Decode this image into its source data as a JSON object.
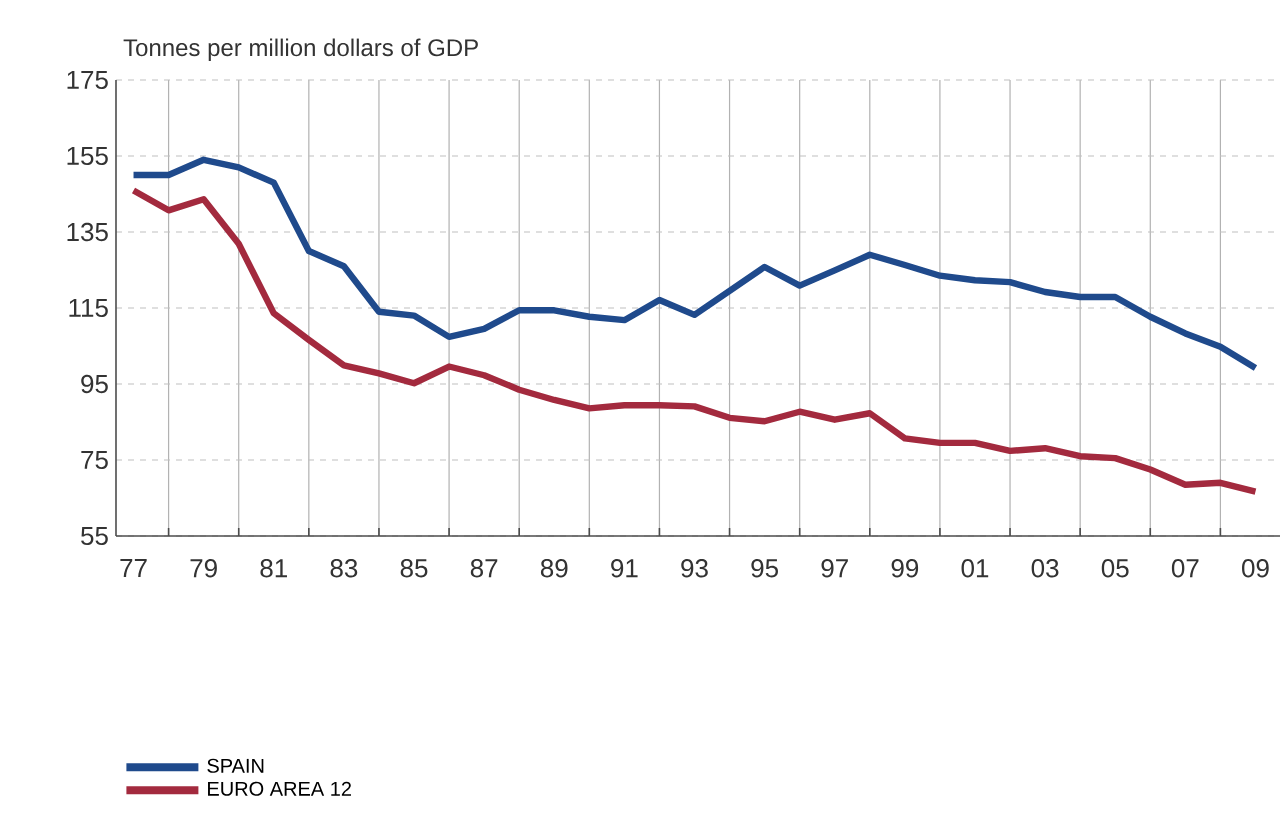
{
  "chart_data": {
    "type": "line",
    "ylabel": "Tonnes per million dollars of GDP",
    "x": [
      1977,
      1978,
      1979,
      1980,
      1981,
      1982,
      1983,
      1984,
      1985,
      1986,
      1987,
      1988,
      1989,
      1990,
      1991,
      1992,
      1993,
      1994,
      1995,
      1996,
      1997,
      1998,
      1999,
      2000,
      2001,
      2002,
      2003,
      2004,
      2005,
      2006,
      2007,
      2008,
      2009
    ],
    "series": [
      {
        "name": "SPAIN",
        "color": "#1f4a8c",
        "values": [
          150,
          150,
          154,
          152,
          148,
          130,
          126,
          114,
          113,
          107.4,
          109.5,
          114.4,
          114.4,
          112.7,
          111.8,
          117.1,
          113.2,
          119.5,
          125.8,
          120.9,
          124.9,
          129,
          126.3,
          123.5,
          122.3,
          121.8,
          119.2,
          117.9,
          117.9,
          112.7,
          108.3,
          104.8,
          99.2
        ]
      },
      {
        "name": "EURO AREA 12",
        "color": "#a32a3e",
        "values": [
          145.9,
          140.7,
          143.6,
          131.9,
          113.6,
          106.6,
          99.9,
          97.8,
          95.2,
          99.6,
          97.3,
          93.5,
          90.8,
          88.6,
          89.4,
          89.4,
          89.1,
          86.1,
          85.2,
          87.7,
          85.6,
          87.3,
          80.7,
          79.5,
          79.5,
          77.4,
          78.1,
          76,
          75.5,
          72.5,
          68.5,
          69,
          66.7
        ]
      }
    ],
    "xlim": [
      1976.5,
      2009.7
    ],
    "xticks": [
      {
        "value": 1977,
        "label": "77"
      },
      {
        "value": 1978,
        "label": null
      },
      {
        "value": 1979,
        "label": "79"
      },
      {
        "value": 1980,
        "label": null
      },
      {
        "value": 1981,
        "label": "81"
      },
      {
        "value": 1982,
        "label": null
      },
      {
        "value": 1983,
        "label": "83"
      },
      {
        "value": 1984,
        "label": null
      },
      {
        "value": 1985,
        "label": "85"
      },
      {
        "value": 1986,
        "label": null
      },
      {
        "value": 1987,
        "label": "87"
      },
      {
        "value": 1988,
        "label": null
      },
      {
        "value": 1989,
        "label": "89"
      },
      {
        "value": 1990,
        "label": null
      },
      {
        "value": 1991,
        "label": "91"
      },
      {
        "value": 1992,
        "label": null
      },
      {
        "value": 1993,
        "label": "93"
      },
      {
        "value": 1994,
        "label": null
      },
      {
        "value": 1995,
        "label": "95"
      },
      {
        "value": 1996,
        "label": null
      },
      {
        "value": 1997,
        "label": "97"
      },
      {
        "value": 1998,
        "label": null
      },
      {
        "value": 1999,
        "label": "99"
      },
      {
        "value": 2000,
        "label": null
      },
      {
        "value": 2001,
        "label": "01"
      },
      {
        "value": 2002,
        "label": null
      },
      {
        "value": 2003,
        "label": "03"
      },
      {
        "value": 2004,
        "label": null
      },
      {
        "value": 2005,
        "label": "05"
      },
      {
        "value": 2006,
        "label": null
      },
      {
        "value": 2007,
        "label": "07"
      },
      {
        "value": 2008,
        "label": null
      },
      {
        "value": 2009,
        "label": "09"
      }
    ],
    "ylim": [
      55,
      175
    ],
    "yticks": [
      55,
      75,
      95,
      115,
      135,
      155,
      175
    ],
    "grid": true,
    "legend": "bottom left",
    "marker": "none",
    "line_style": "solid"
  }
}
